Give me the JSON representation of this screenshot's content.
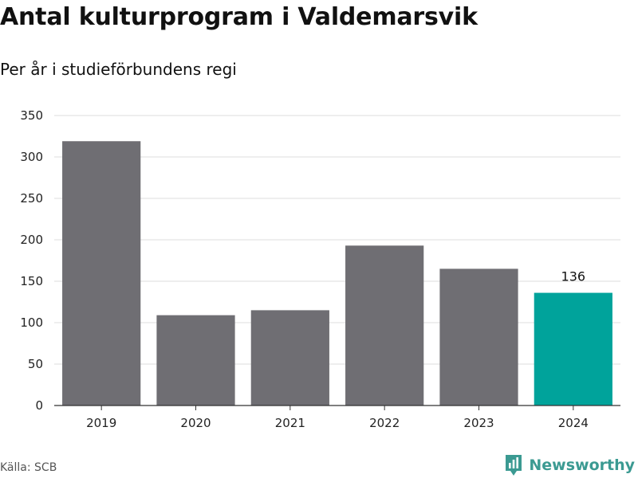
{
  "title": "Antal kulturprogram i Valdemarsvik",
  "subtitle": "Per år i studieförbundens regi",
  "source": "Källa: SCB",
  "brand": {
    "name": "Newsworthy",
    "icon": "newsworthy-logo-icon",
    "color": "#3b9a92"
  },
  "colors": {
    "bar": "#6f6e73",
    "highlight": "#00a39b",
    "grid": "#dddddd",
    "axis": "#333333"
  },
  "chart_data": {
    "type": "bar",
    "title": "Antal kulturprogram i Valdemarsvik",
    "subtitle": "Per år i studieförbundens regi",
    "categories": [
      "2019",
      "2020",
      "2021",
      "2022",
      "2023",
      "2024"
    ],
    "values": [
      319,
      109,
      115,
      193,
      165,
      136
    ],
    "highlight_index": 5,
    "data_labels": [
      {
        "index": 5,
        "text": "136"
      }
    ],
    "ylim": [
      0,
      350
    ],
    "yticks": [
      0,
      50,
      100,
      150,
      200,
      250,
      300,
      350
    ],
    "grid": true,
    "xlabel": "",
    "ylabel": ""
  }
}
